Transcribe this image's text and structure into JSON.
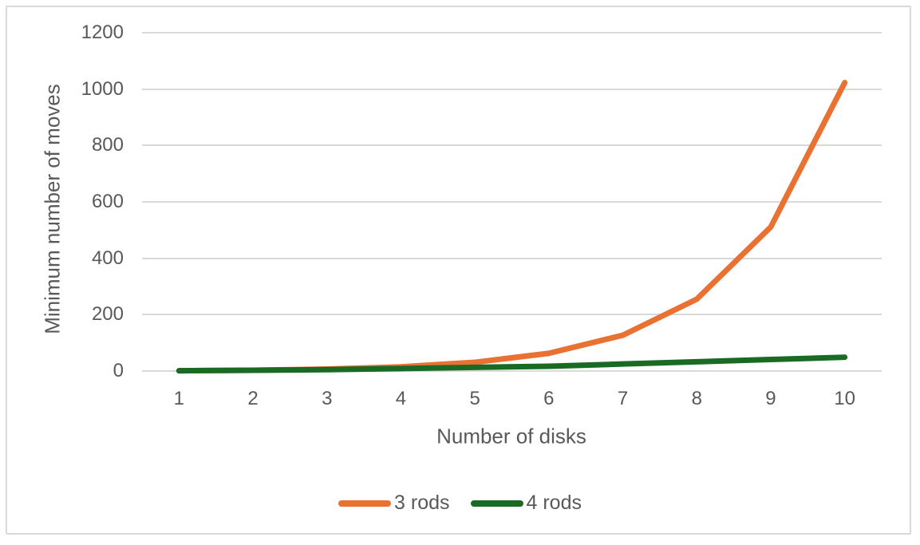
{
  "chart_data": {
    "type": "line",
    "title": "",
    "xlabel": "Number of disks",
    "ylabel": "Minimum number of moves",
    "x": [
      1,
      2,
      3,
      4,
      5,
      6,
      7,
      8,
      9,
      10
    ],
    "series": [
      {
        "name": "3 rods",
        "color": "#E97132",
        "values": [
          1,
          3,
          7,
          15,
          31,
          63,
          127,
          255,
          511,
          1023
        ]
      },
      {
        "name": "4 rods",
        "color": "#196B24",
        "values": [
          1,
          3,
          5,
          9,
          13,
          17,
          25,
          33,
          41,
          49
        ]
      }
    ],
    "ylim": [
      0,
      1200
    ],
    "yticks": [
      0,
      200,
      400,
      600,
      800,
      1000,
      1200
    ],
    "grid": true,
    "legend_position": "bottom",
    "gridline_color": "#D9D9D9",
    "text_color": "#595959",
    "frame_border_color": "#D9D9D9",
    "background_color": "#FFFFFF",
    "line_width": 7
  }
}
